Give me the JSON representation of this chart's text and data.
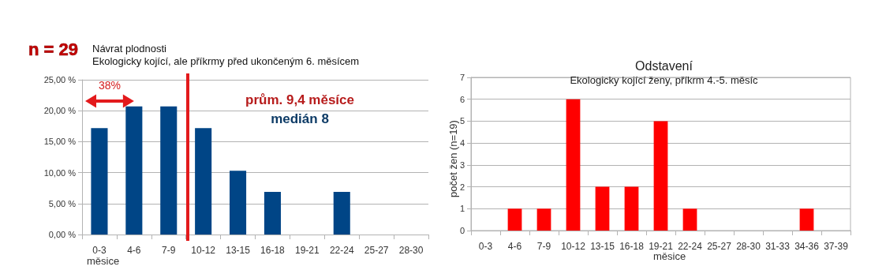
{
  "chart_data": [
    {
      "type": "bar",
      "title": "Návrat plodnosti",
      "subtitle": "Ekologicky kojící, ale příkrmy před ukončeným 6. měsícem",
      "xlabel": "měsice",
      "categories": [
        "0-3",
        "4-6",
        "7-9",
        "10-12",
        "13-15",
        "16-18",
        "19-21",
        "22-24",
        "25-27",
        "28-30"
      ],
      "values": [
        17.2,
        20.7,
        20.7,
        17.2,
        10.3,
        6.9,
        0,
        6.9,
        0,
        0
      ],
      "color": "#004586",
      "ylim": [
        0,
        25
      ],
      "yticks": [
        {
          "value": 0,
          "label": "0,00 %"
        },
        {
          "value": 5,
          "label": "5,00 %"
        },
        {
          "value": 10,
          "label": "10,00 %"
        },
        {
          "value": 15,
          "label": "15,00 %"
        },
        {
          "value": 20,
          "label": "20,00 %"
        },
        {
          "value": 25,
          "label": "25,00 %"
        }
      ],
      "ref_lines": [
        {
          "axis": "x",
          "value": "10-12",
          "color": "#e31a1c"
        }
      ],
      "annotations": [
        "n = 29",
        "38%",
        "prům. 9,4 měsíce",
        "medián 8"
      ],
      "grid": "y"
    },
    {
      "type": "bar",
      "title": "Odstavení",
      "subtitle": "Ekologicky kojící ženy, příkrm 4.-5. měsíc",
      "xlabel": "měsice",
      "ylabel": "počet žen (n=19)",
      "categories": [
        "0-3",
        "4-6",
        "7-9",
        "10-12",
        "13-15",
        "16-18",
        "19-21",
        "22-24",
        "25-27",
        "28-30",
        "31-33",
        "34-36",
        "37-39"
      ],
      "values": [
        0,
        1,
        1,
        6,
        2,
        2,
        5,
        1,
        0,
        0,
        0,
        1,
        0
      ],
      "color": "#ff0000",
      "ylim": [
        0,
        7
      ],
      "yticks": [
        0,
        1,
        2,
        3,
        4,
        5,
        6,
        7
      ],
      "grid": "y"
    }
  ]
}
